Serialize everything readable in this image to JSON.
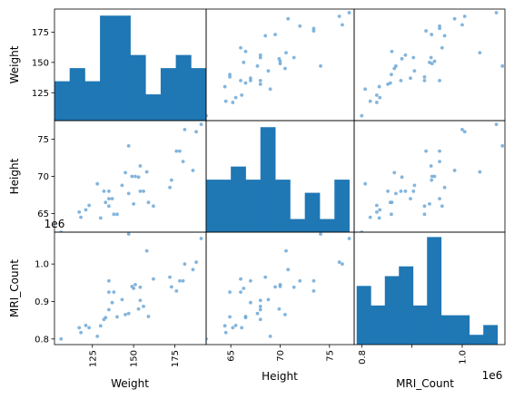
{
  "chart_data": {
    "type": "scatter",
    "title": "",
    "variables": [
      {
        "name": "Weight",
        "lim": [
          102,
          194
        ],
        "ticks": [
          125,
          150,
          175
        ],
        "tick_labels": [
          "125",
          "150",
          "175"
        ],
        "offset": ""
      },
      {
        "name": "Height",
        "lim": [
          62.5,
          77.5
        ],
        "ticks": [
          65,
          70,
          75
        ],
        "tick_labels": [
          "65",
          "70",
          "75"
        ],
        "offset": ""
      },
      {
        "name": "MRI_Count",
        "lim": [
          785000,
          1085000
        ],
        "ticks": [
          800000,
          900000,
          1000000
        ],
        "tick_labels": [
          "0.8",
          "0.9",
          "1.0"
        ],
        "offset": "1e6"
      }
    ],
    "x_tick_labels_shown": {
      "Weight": [
        "125",
        "150",
        "175"
      ],
      "Height": [
        "65",
        "70",
        "75"
      ],
      "MRI_Count": [
        "0.8",
        "1.0"
      ]
    },
    "histograms": {
      "Weight": {
        "edges": [
          102,
          111.2,
          120.4,
          129.6,
          138.8,
          148,
          157.2,
          166.4,
          175.6,
          184.8,
          194
        ],
        "counts": [
          3,
          4,
          3,
          8,
          8,
          5,
          2,
          4,
          5,
          4
        ],
        "lim": [
          0,
          8.5
        ]
      },
      "Height": {
        "edges": [
          62,
          63.5,
          65,
          66.5,
          68,
          69.5,
          71,
          72.5,
          74,
          75.5,
          77
        ],
        "counts": [
          4,
          4,
          5,
          4,
          8,
          4,
          1,
          3,
          1,
          4
        ],
        "lim": [
          0,
          8.5
        ]
      },
      "MRI_Count": {
        "edges": [
          790000,
          818000,
          846000,
          874000,
          902000,
          930000,
          958000,
          986000,
          1014000,
          1042000,
          1070000
        ],
        "counts": [
          6,
          4,
          7,
          8,
          4,
          11,
          3,
          3,
          1,
          2
        ],
        "lim": [
          0,
          11.5
        ]
      }
    },
    "points": {
      "Weight": [
        180,
        186,
        132,
        173,
        118,
        151,
        140,
        154,
        130,
        133,
        145,
        154,
        106,
        137,
        128,
        135,
        135,
        121,
        191,
        156,
        176,
        159,
        178,
        135,
        117,
        147,
        143,
        147,
        172,
        188,
        150,
        158,
        181,
        153,
        162,
        138,
        149,
        123
      ],
      "Height": [
        72,
        70.8,
        68,
        69.5,
        64.5,
        70,
        64.9,
        68,
        64.4,
        66.5,
        70.5,
        71.4,
        62.5,
        67,
        69,
        66,
        68,
        65.5,
        77,
        68,
        73.4,
        66.5,
        73.4,
        67,
        65.2,
        74.1,
        68.8,
        67.7,
        68.5,
        76,
        66.3,
        70.6,
        76.3,
        69.9,
        66,
        64.9,
        70,
        66.1
      ],
      "MRI_Count": [
        955000,
        985000,
        852000,
        939000,
        817000,
        945000,
        859000,
        903000,
        835000,
        857000,
        865000,
        938000,
        800000,
        897000,
        807000,
        925000,
        878000,
        836000,
        1068000,
        887000,
        928000,
        860000,
        955000,
        955000,
        830000,
        1080000,
        905000,
        868000,
        965000,
        1005000,
        935000,
        1035000,
        1000000,
        880000,
        960000,
        925000,
        940000,
        830000
      ]
    },
    "colors": {
      "hist": "#1f77b4",
      "points": "#6fa8d6",
      "frame": "#000000"
    },
    "grid": false,
    "legend": "none"
  }
}
